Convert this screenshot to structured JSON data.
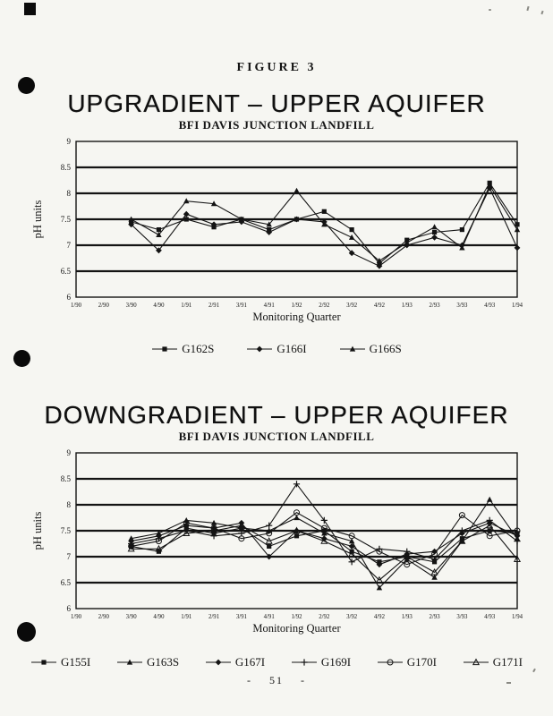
{
  "page": {
    "figure_label": "FIGURE 3",
    "page_number": "- 51 -"
  },
  "chart_data": [
    {
      "type": "line",
      "title": "UPGRADIENT – UPPER AQUIFER",
      "subtitle": "BFI DAVIS JUNCTION LANDFILL",
      "xlabel": "Monitoring Quarter",
      "ylabel": "pH units",
      "ylim": [
        6,
        9
      ],
      "ytick_step": 0.5,
      "grid": "horizontal",
      "legend_position": "bottom",
      "categories": [
        "1/90",
        "2/90",
        "3/90",
        "4/90",
        "1/91",
        "2/91",
        "3/91",
        "4/91",
        "1/92",
        "2/92",
        "3/92",
        "4/92",
        "1/93",
        "2/93",
        "3/93",
        "4/93",
        "1/94"
      ],
      "series": [
        {
          "name": "G162S",
          "marker": "square",
          "values": [
            null,
            null,
            7.45,
            7.3,
            7.5,
            7.35,
            7.5,
            7.3,
            7.5,
            7.65,
            7.3,
            6.65,
            7.1,
            7.25,
            7.3,
            8.2,
            7.4
          ]
        },
        {
          "name": "G166I",
          "marker": "diamond",
          "values": [
            null,
            null,
            7.4,
            6.9,
            7.6,
            7.4,
            7.45,
            7.25,
            7.5,
            7.45,
            6.85,
            6.6,
            7.0,
            7.15,
            7.0,
            8.1,
            6.95
          ]
        },
        {
          "name": "G166S",
          "marker": "tri-up",
          "values": [
            null,
            null,
            7.5,
            7.2,
            7.85,
            7.8,
            7.5,
            7.4,
            8.05,
            7.4,
            7.15,
            6.7,
            7.05,
            7.35,
            6.95,
            8.15,
            7.3
          ]
        }
      ]
    },
    {
      "type": "line",
      "title": "DOWNGRADIENT – UPPER AQUIFER",
      "subtitle": "BFI DAVIS JUNCTION LANDFILL",
      "xlabel": "Monitoring Quarter",
      "ylabel": "pH units",
      "ylim": [
        6,
        9
      ],
      "ytick_step": 0.5,
      "grid": "horizontal",
      "legend_position": "bottom",
      "categories": [
        "1/90",
        "2/90",
        "3/90",
        "4/90",
        "1/91",
        "2/91",
        "3/91",
        "4/91",
        "1/92",
        "2/92",
        "3/92",
        "4/92",
        "1/93",
        "2/93",
        "3/93",
        "4/93",
        "1/94"
      ],
      "series": [
        {
          "name": "G155I",
          "marker": "square",
          "values": [
            null,
            null,
            7.2,
            7.1,
            7.55,
            7.45,
            7.55,
            7.2,
            7.4,
            7.5,
            7.1,
            6.9,
            7.0,
            6.9,
            7.35,
            7.5,
            7.45
          ]
        },
        {
          "name": "G163S",
          "marker": "tri-up",
          "values": [
            null,
            null,
            7.35,
            7.45,
            7.7,
            7.65,
            7.55,
            7.5,
            7.75,
            7.45,
            7.3,
            6.4,
            6.95,
            6.6,
            7.3,
            8.1,
            7.35
          ]
        },
        {
          "name": "G167I",
          "marker": "diamond",
          "values": [
            null,
            null,
            7.3,
            7.4,
            7.6,
            7.55,
            7.65,
            7.0,
            7.5,
            7.35,
            7.2,
            6.85,
            7.05,
            7.1,
            7.45,
            7.65,
            7.4
          ]
        },
        {
          "name": "G169I",
          "marker": "plus",
          "values": [
            null,
            null,
            7.25,
            7.35,
            7.5,
            7.4,
            7.45,
            7.6,
            8.4,
            7.7,
            6.9,
            7.15,
            7.1,
            6.95,
            7.5,
            7.7,
            7.3
          ]
        },
        {
          "name": "G170I",
          "marker": "circle-open",
          "values": [
            null,
            null,
            7.2,
            7.3,
            7.65,
            7.55,
            7.35,
            7.45,
            7.85,
            7.55,
            7.4,
            7.1,
            6.85,
            7.05,
            7.8,
            7.4,
            7.5
          ]
        },
        {
          "name": "G171I",
          "marker": "tri-open",
          "values": [
            null,
            null,
            7.15,
            7.15,
            7.45,
            7.5,
            7.6,
            7.3,
            7.5,
            7.3,
            7.05,
            6.55,
            7.0,
            6.7,
            7.3,
            7.6,
            6.95
          ]
        }
      ]
    }
  ],
  "style": {
    "ink_color": "#141414",
    "paper_color": "#f6f6f2"
  }
}
